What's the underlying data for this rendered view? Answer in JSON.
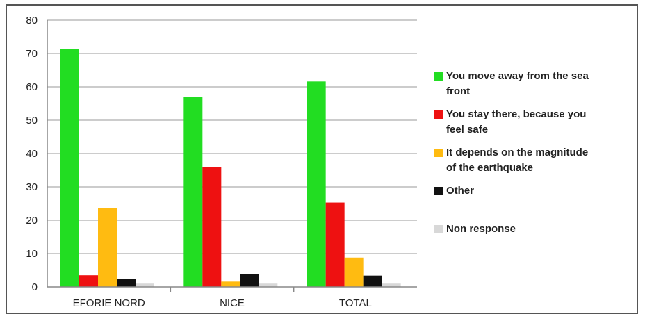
{
  "chart_data": {
    "type": "bar",
    "categories": [
      "EFORIE NORD",
      "NICE",
      "TOTAL"
    ],
    "ylim": [
      0,
      80
    ],
    "yticks": [
      0,
      10,
      20,
      30,
      40,
      50,
      60,
      70,
      80
    ],
    "grid": true,
    "legend_position": "right",
    "series": [
      {
        "name": "You move away from the sea front",
        "legend_lines": [
          "You move away from the sea",
          "front"
        ],
        "color": "#22dd22",
        "values": [
          71.3,
          57.0,
          61.6
        ]
      },
      {
        "name": "You stay there, because you feel safe",
        "legend_lines": [
          "You stay there, because you",
          "feel safe"
        ],
        "color": "#ee1111",
        "values": [
          3.5,
          36.0,
          25.3
        ]
      },
      {
        "name": "It depends on the magnitude of the earthquake",
        "legend_lines": [
          "It depends on the magnitude",
          "of the earthquake"
        ],
        "color": "#ffbb11",
        "values": [
          23.6,
          1.6,
          8.8
        ]
      },
      {
        "name": "Other",
        "legend_lines": [
          "Other"
        ],
        "color": "#111111",
        "values": [
          2.3,
          3.9,
          3.4
        ]
      },
      {
        "name": "Non response",
        "legend_lines": [
          "Non response"
        ],
        "color": "#d8d8d8",
        "values": [
          1.0,
          1.0,
          1.0
        ]
      }
    ]
  }
}
